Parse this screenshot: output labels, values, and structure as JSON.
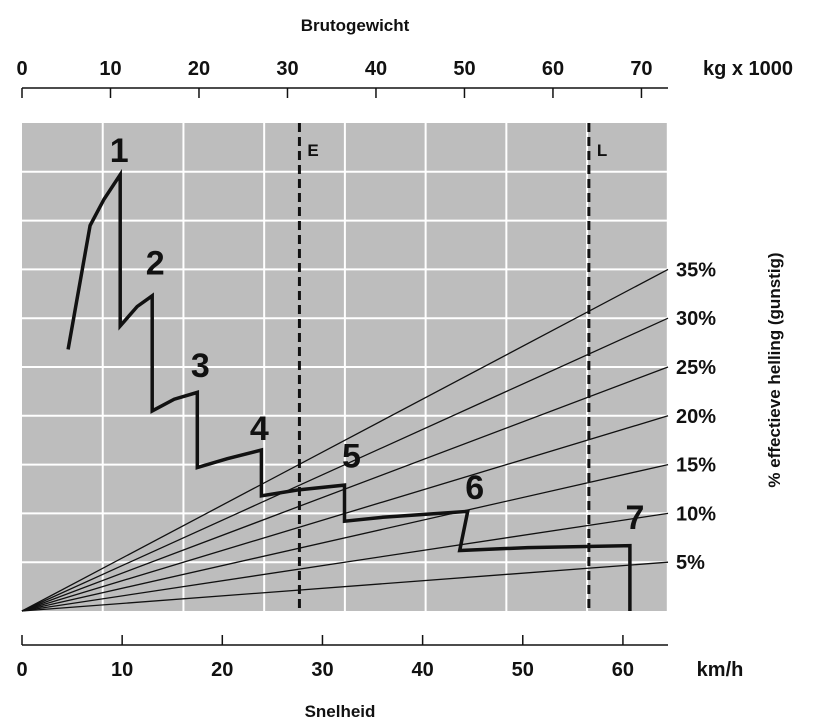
{
  "chart_data": {
    "type": "line",
    "top_axis": {
      "title": "Brutogewicht",
      "unit": "kg x 1000",
      "ticks": [
        0,
        10,
        20,
        30,
        40,
        50,
        60,
        70
      ],
      "range": [
        0,
        73
      ]
    },
    "bottom_axis": {
      "title": "Snelheid",
      "unit": "km/h",
      "ticks": [
        0,
        10,
        20,
        30,
        40,
        50,
        60
      ],
      "range": [
        0,
        64.5
      ]
    },
    "right_axis": {
      "title": "% effectieve helling (gunstig)"
    },
    "slope_lines": [
      {
        "label": "35%",
        "end_y": 35
      },
      {
        "label": "30%",
        "end_y": 30
      },
      {
        "label": "25%",
        "end_y": 25
      },
      {
        "label": "20%",
        "end_y": 20
      },
      {
        "label": "15%",
        "end_y": 15
      },
      {
        "label": "10%",
        "end_y": 10
      },
      {
        "label": "5%",
        "end_y": 5
      }
    ],
    "markers": [
      {
        "label": "E",
        "x": 27.7
      },
      {
        "label": "L",
        "x": 56.6
      }
    ],
    "gears": [
      {
        "label": "1",
        "label_x": 9.7,
        "label_y": 46
      },
      {
        "label": "2",
        "label_x": 13.3,
        "label_y": 34.5
      },
      {
        "label": "3",
        "label_x": 17.8,
        "label_y": 24
      },
      {
        "label": "4",
        "label_x": 23.7,
        "label_y": 17.5
      },
      {
        "label": "5",
        "label_x": 32.9,
        "label_y": 14.7
      },
      {
        "label": "6",
        "label_x": 45.2,
        "label_y": 11.5
      },
      {
        "label": "7",
        "label_x": 61.2,
        "label_y": 8.4
      }
    ],
    "series": [
      {
        "points": [
          [
            4.6,
            26.8
          ],
          [
            6.8,
            39.5
          ],
          [
            8.2,
            42.2
          ],
          [
            9.8,
            44.7
          ],
          [
            9.8,
            29.2
          ],
          [
            11.5,
            31.2
          ],
          [
            13.0,
            32.3
          ],
          [
            13.0,
            20.5
          ],
          [
            15.2,
            21.7
          ],
          [
            17.5,
            22.4
          ],
          [
            17.5,
            14.7
          ],
          [
            20.5,
            15.6
          ],
          [
            23.9,
            16.5
          ],
          [
            23.9,
            11.8
          ],
          [
            27.5,
            12.4
          ],
          [
            32.2,
            12.9
          ],
          [
            32.2,
            9.2
          ],
          [
            36.0,
            9.6
          ],
          [
            44.5,
            10.2
          ],
          [
            43.7,
            6.2
          ],
          [
            50.5,
            6.5
          ],
          [
            60.7,
            6.7
          ],
          [
            60.7,
            0
          ]
        ]
      }
    ],
    "grid": {
      "x_step": 8.06,
      "y_step": 5,
      "y_max": 50
    },
    "colors": {
      "plot_bg": "#bdbdbd",
      "grid": "#ffffff",
      "ink": "#111111"
    }
  }
}
